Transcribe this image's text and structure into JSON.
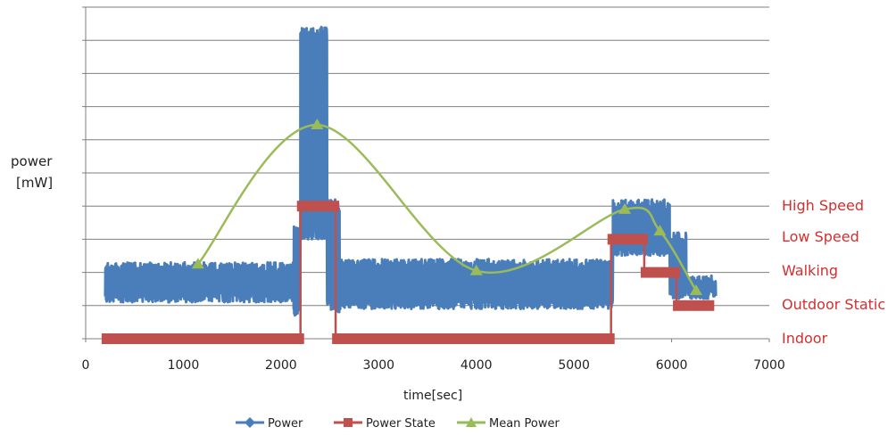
{
  "chart_data": {
    "type": "line",
    "ylabel": [
      "power",
      "[mW]"
    ],
    "xlabel": "time[sec]",
    "xlim": [
      0,
      7000
    ],
    "x_ticks": [
      0,
      1000,
      2000,
      3000,
      4000,
      5000,
      6000,
      7000
    ],
    "y_gridlines": 10,
    "grid": true,
    "legend_position": "bottom",
    "state_labels": [
      "High Speed",
      "Low Speed",
      "Walking",
      "Outdoor Static",
      "Indoor"
    ],
    "series": [
      {
        "name": "Power",
        "color": "#4a7ebb",
        "marker": "diamond",
        "bands": [
          {
            "x0": 200,
            "x1": 2130,
            "lo": 1.1,
            "hi": 2.3
          },
          {
            "x0": 2130,
            "x1": 2200,
            "lo": 0.7,
            "hi": 3.4
          },
          {
            "x0": 2200,
            "x1": 2470,
            "lo": 3.0,
            "hi": 9.4
          },
          {
            "x0": 2470,
            "x1": 2600,
            "lo": 0.8,
            "hi": 4.2
          },
          {
            "x0": 2600,
            "x1": 5400,
            "lo": 0.9,
            "hi": 2.4
          },
          {
            "x0": 5400,
            "x1": 5980,
            "lo": 2.5,
            "hi": 4.2
          },
          {
            "x0": 5980,
            "x1": 6150,
            "lo": 1.2,
            "hi": 3.2
          },
          {
            "x0": 6150,
            "x1": 6450,
            "lo": 1.2,
            "hi": 1.9
          }
        ]
      },
      {
        "name": "Power State",
        "color": "#c0504d",
        "marker": "square",
        "points": [
          [
            200,
            0
          ],
          [
            2200,
            0
          ],
          [
            2200,
            4
          ],
          [
            2560,
            4
          ],
          [
            2560,
            0
          ],
          [
            5380,
            0
          ],
          [
            5380,
            3
          ],
          [
            5720,
            3
          ],
          [
            5720,
            2
          ],
          [
            6050,
            2
          ],
          [
            6050,
            1
          ],
          [
            6400,
            1
          ]
        ]
      },
      {
        "name": "Mean Power",
        "color": "#9bbb59",
        "marker": "triangle",
        "points": [
          [
            1150,
            2.25
          ],
          [
            2370,
            6.45
          ],
          [
            4000,
            2.05
          ],
          [
            5520,
            3.9
          ],
          [
            5880,
            3.25
          ],
          [
            6250,
            1.45
          ]
        ]
      }
    ]
  }
}
